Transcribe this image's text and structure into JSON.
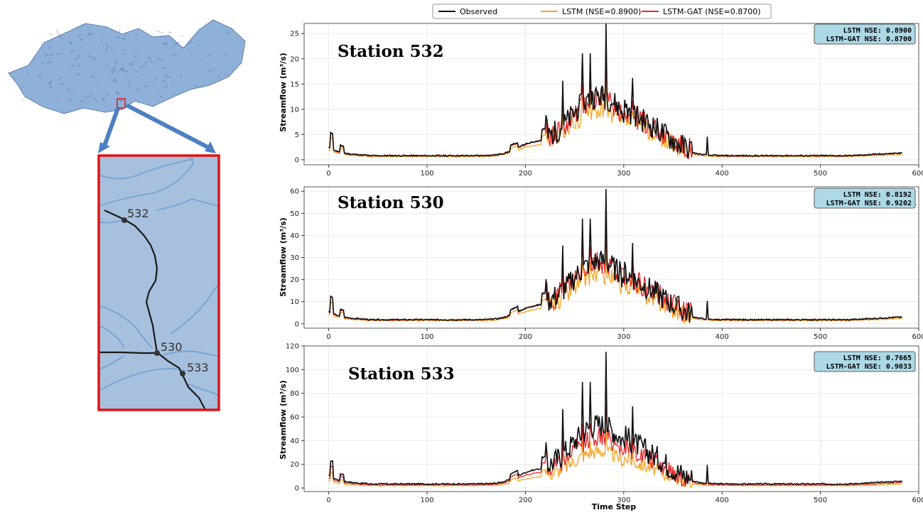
{
  "map": {
    "station_labels": [
      "532",
      "530",
      "533"
    ]
  },
  "colors": {
    "observed": "#111111",
    "lstm": "#f5a623",
    "lstm_gat": "#e8262a",
    "nse_box": "#add8e6",
    "basin": "#8fb0d8",
    "inset_bg": "#a7c0dd",
    "inset_border": "#e11414",
    "arrow": "#4f7fc4"
  },
  "legend": {
    "observed": "Observed",
    "lstm": "LSTM (NSE=0.8900)",
    "lstm_gat": "LSTM-GAT (NSE=0.8700)"
  },
  "chart_data": [
    {
      "type": "line",
      "title": "Station 532",
      "ylabel": "Streamflow (m³/s)",
      "xlabel": "",
      "xlim": [
        -25,
        600
      ],
      "ylim": [
        -1,
        27
      ],
      "xticks": [
        0,
        100,
        200,
        300,
        400,
        500,
        600
      ],
      "yticks": [
        0,
        5,
        10,
        15,
        20,
        25
      ],
      "grid": true,
      "nse_lines": [
        "LSTM NSE: 0.8900",
        "LSTM-GAT NSE: 0.8700"
      ],
      "series": [
        {
          "name": "Observed",
          "peak": 27
        },
        {
          "name": "LSTM",
          "peak": 16
        },
        {
          "name": "LSTM-GAT",
          "peak": 19.5
        }
      ]
    },
    {
      "type": "line",
      "title": "Station 530",
      "ylabel": "Streamflow (m³/s)",
      "xlabel": "",
      "xlim": [
        -25,
        600
      ],
      "ylim": [
        -2,
        62
      ],
      "xticks": [
        0,
        100,
        200,
        300,
        400,
        500,
        600
      ],
      "yticks": [
        0,
        10,
        20,
        30,
        40,
        50,
        60
      ],
      "grid": true,
      "nse_lines": [
        "LSTM NSE: 0.8192",
        "LSTM-GAT NSE: 0.9202"
      ],
      "series": [
        {
          "name": "Observed",
          "peak": 61
        },
        {
          "name": "LSTM",
          "peak": 36
        },
        {
          "name": "LSTM-GAT",
          "peak": 45
        }
      ]
    },
    {
      "type": "line",
      "title": "Station 533",
      "ylabel": "Streamflow (m³/s)",
      "xlabel": "Time Step",
      "xlim": [
        -25,
        600
      ],
      "ylim": [
        -3,
        120
      ],
      "xticks": [
        0,
        100,
        200,
        300,
        400,
        500,
        600
      ],
      "yticks": [
        0,
        20,
        40,
        60,
        80,
        100,
        120
      ],
      "grid": true,
      "nse_lines": [
        "LSTM NSE: 0.7665",
        "LSTM-GAT NSE: 0.9033"
      ],
      "series": [
        {
          "name": "Observed",
          "peak": 115
        },
        {
          "name": "LSTM",
          "peak": 50
        },
        {
          "name": "LSTM-GAT",
          "peak": 70
        }
      ]
    }
  ]
}
